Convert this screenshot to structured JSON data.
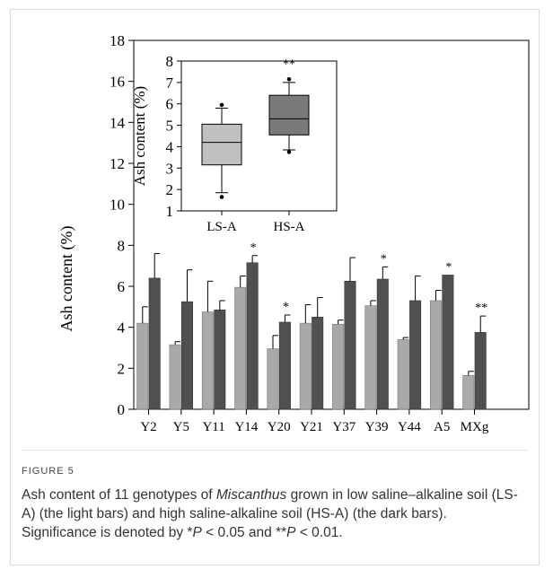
{
  "figure": {
    "label": "FIGURE 5",
    "caption_parts": {
      "p1": "Ash content of 11 genotypes of ",
      "species": "Miscanthus",
      "p2": " grown in low saline–alkaline soil (LS-A) (the light bars) and high saline-alkaline soil (HS-A) (the dark bars). Significance is denoted by *",
      "p_sym1": "P",
      "p3": " < 0.05 and **",
      "p_sym2": "P",
      "p4": " < 0.01."
    }
  },
  "colors": {
    "light_bar": "#a9a9a9",
    "dark_bar": "#505050",
    "box_light": "#c0c0c0",
    "box_dark": "#7a7a7a",
    "axis": "#000000"
  },
  "chart_data": [
    {
      "type": "bar",
      "categories": [
        "Y2",
        "Y5",
        "Y11",
        "Y14",
        "Y20",
        "Y21",
        "Y37",
        "Y39",
        "Y44",
        "A5",
        "MXg"
      ],
      "series": [
        {
          "name": "LS-A",
          "values": [
            4.2,
            3.15,
            4.75,
            5.95,
            2.95,
            4.2,
            4.15,
            5.05,
            3.4,
            5.3,
            1.65
          ],
          "errors": [
            0.8,
            0.15,
            1.5,
            0.55,
            0.65,
            0.9,
            0.2,
            0.25,
            0.1,
            0.5,
            0.2
          ]
        },
        {
          "name": "HS-A",
          "values": [
            6.4,
            5.25,
            4.85,
            7.15,
            4.25,
            4.5,
            6.25,
            6.35,
            5.3,
            6.55,
            3.75
          ],
          "errors": [
            1.2,
            1.55,
            0.45,
            0.35,
            0.35,
            0.95,
            1.15,
            0.6,
            1.2,
            0.0,
            0.8
          ]
        }
      ],
      "significance": [
        "",
        "",
        "",
        "*",
        "*",
        "",
        "",
        "*",
        "",
        "*",
        "**"
      ],
      "ylabel": "Ash content (%)",
      "ylim": [
        0,
        18
      ],
      "yticks": [
        0,
        2,
        4,
        6,
        8,
        10,
        12,
        14,
        16,
        18
      ]
    },
    {
      "type": "box",
      "categories": [
        "LS-A",
        "HS-A"
      ],
      "boxes": [
        {
          "whisker_low": 1.85,
          "q1": 3.15,
          "median": 4.2,
          "q3": 5.05,
          "whisker_high": 5.8,
          "outliers": [
            1.65,
            5.95
          ]
        },
        {
          "whisker_low": 3.85,
          "q1": 4.55,
          "median": 5.3,
          "q3": 6.4,
          "whisker_high": 7.0,
          "outliers": [
            3.75,
            7.15
          ]
        }
      ],
      "significance": [
        "",
        "**"
      ],
      "ylabel": "Ash content (%)",
      "ylim": [
        1,
        8
      ],
      "yticks": [
        1,
        2,
        3,
        4,
        5,
        6,
        7,
        8
      ]
    }
  ]
}
